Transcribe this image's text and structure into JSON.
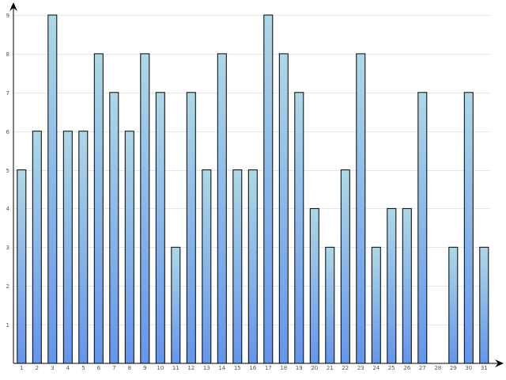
{
  "chart_data": {
    "type": "bar",
    "categories": [
      "1",
      "2",
      "3",
      "4",
      "5",
      "6",
      "7",
      "8",
      "9",
      "10",
      "11",
      "12",
      "13",
      "14",
      "15",
      "16",
      "17",
      "18",
      "19",
      "20",
      "21",
      "22",
      "23",
      "24",
      "25",
      "26",
      "27",
      "28",
      "29",
      "30",
      "31"
    ],
    "values": [
      5,
      6,
      9,
      6,
      6,
      8,
      7,
      6,
      8,
      7,
      3,
      7,
      5,
      8,
      5,
      5,
      9,
      8,
      7,
      4,
      3,
      5,
      8,
      3,
      4,
      4,
      7,
      0,
      3,
      7,
      3
    ],
    "y_ticks": [
      "1",
      "2",
      "3",
      "4",
      "5",
      "6",
      "7",
      "8",
      "9"
    ],
    "ylim": [
      0,
      9
    ],
    "grid": true,
    "colors": {
      "bar_top": "#add8e6",
      "bar_bottom": "#6495ed",
      "grid": "#e6e6e6",
      "axis": "#000000"
    }
  }
}
